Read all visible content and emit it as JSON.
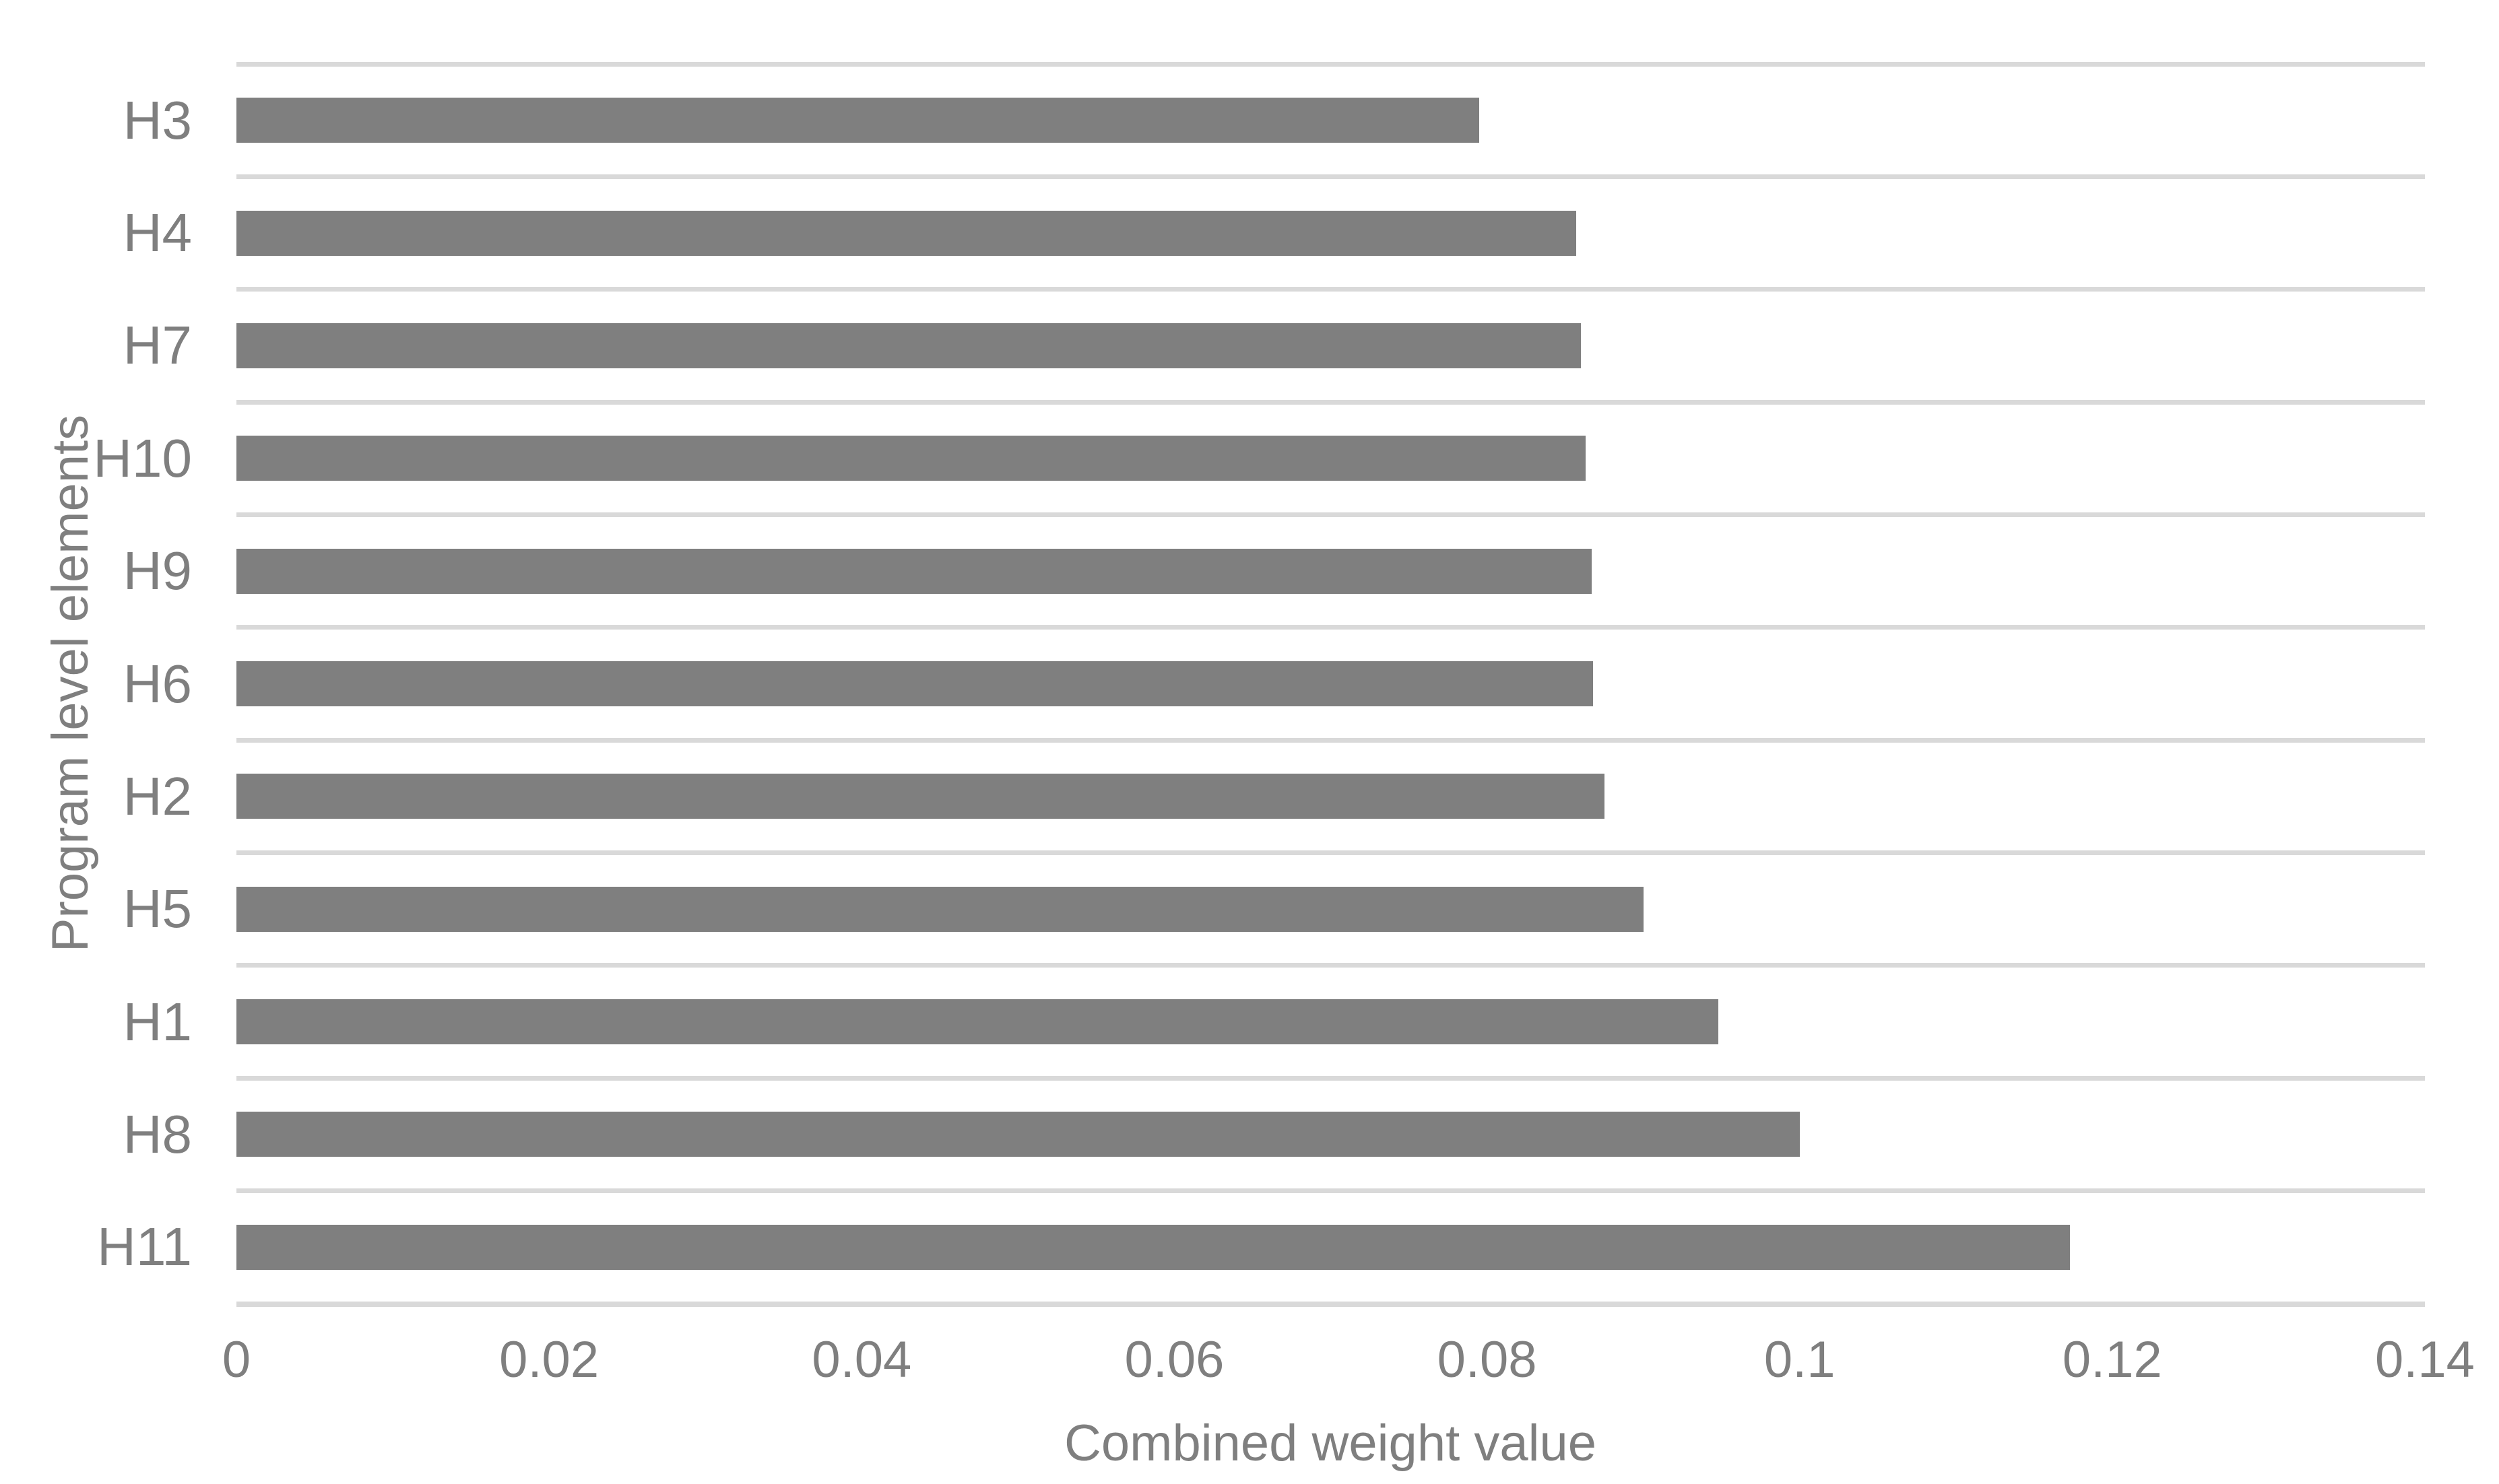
{
  "chart_data": {
    "type": "bar",
    "orientation": "horizontal",
    "title": "",
    "categories": [
      "H3",
      "H4",
      "H7",
      "H10",
      "H9",
      "H6",
      "H2",
      "H5",
      "H1",
      "H8",
      "H11"
    ],
    "values": [
      0.0795,
      0.0857,
      0.086,
      0.0863,
      0.0867,
      0.0868,
      0.0875,
      0.09,
      0.0948,
      0.1,
      0.1173
    ],
    "xlabel": "Combined weight value",
    "ylabel": "Program level elements",
    "xlim": [
      0,
      0.14
    ],
    "xticks": [
      0,
      0.02,
      0.04,
      0.06,
      0.08,
      0.1,
      0.12,
      0.14
    ],
    "xtick_labels": [
      "0",
      "0.02",
      "0.04",
      "0.06",
      "0.08",
      "0.1",
      "0.12",
      "0.14"
    ],
    "grid": "horizontal category separator lines",
    "legend": "none",
    "bar_color": "#7F7F7F",
    "gridline_color": "#D9D9D9",
    "text_color": "#7F7F7F",
    "background_color": "#FFFFFF"
  }
}
